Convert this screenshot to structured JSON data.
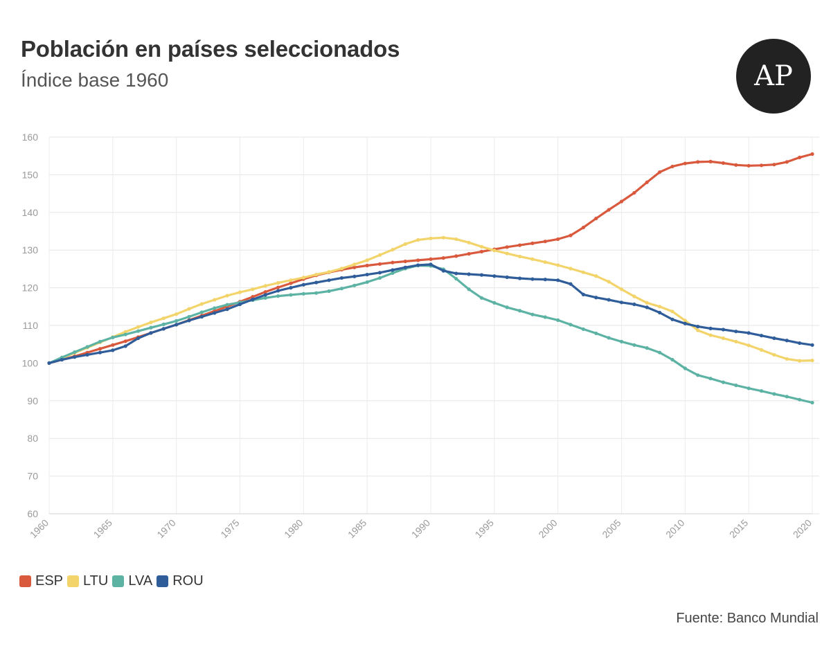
{
  "header": {
    "title": "Población en países seleccionados",
    "subtitle": "Índice base 1960",
    "logo_text": "AP"
  },
  "source": "Fuente: Banco Mundial",
  "chart_data": {
    "type": "line",
    "title": "Población en países seleccionados",
    "subtitle": "Índice base 1960",
    "xlabel": "",
    "ylabel": "",
    "x": [
      1960,
      1961,
      1962,
      1963,
      1964,
      1965,
      1966,
      1967,
      1968,
      1969,
      1970,
      1971,
      1972,
      1973,
      1974,
      1975,
      1976,
      1977,
      1978,
      1979,
      1980,
      1981,
      1982,
      1983,
      1984,
      1985,
      1986,
      1987,
      1988,
      1989,
      1990,
      1991,
      1992,
      1993,
      1994,
      1995,
      1996,
      1997,
      1998,
      1999,
      2000,
      2001,
      2002,
      2003,
      2004,
      2005,
      2006,
      2007,
      2008,
      2009,
      2010,
      2011,
      2012,
      2013,
      2014,
      2015,
      2016,
      2017,
      2018,
      2019,
      2020
    ],
    "xlim": [
      1960,
      2020
    ],
    "ylim": [
      60,
      160
    ],
    "xticks": [
      1960,
      1965,
      1970,
      1975,
      1980,
      1985,
      1990,
      1995,
      2000,
      2005,
      2010,
      2015,
      2020
    ],
    "yticks": [
      60,
      70,
      80,
      90,
      100,
      110,
      120,
      130,
      140,
      150,
      160
    ],
    "grid": true,
    "legend_position": "bottom-left",
    "series": [
      {
        "name": "ESP",
        "color": "#d9593d",
        "values": [
          100,
          100.9,
          101.8,
          102.8,
          103.8,
          104.8,
          105.8,
          106.9,
          108.0,
          109.1,
          110.2,
          111.4,
          112.6,
          113.8,
          115.0,
          116.3,
          117.6,
          118.9,
          120.1,
          121.2,
          122.3,
          123.3,
          124.1,
          124.8,
          125.4,
          125.9,
          126.3,
          126.7,
          127.0,
          127.3,
          127.6,
          127.9,
          128.4,
          129.0,
          129.6,
          130.2,
          130.8,
          131.3,
          131.8,
          132.3,
          132.9,
          133.9,
          136.0,
          138.4,
          140.7,
          142.9,
          145.2,
          148.0,
          150.7,
          152.2,
          153.0,
          153.4,
          153.5,
          153.1,
          152.6,
          152.4,
          152.5,
          152.7,
          153.4,
          154.6,
          155.5
        ]
      },
      {
        "name": "LTU",
        "color": "#f2d46b",
        "values": [
          100,
          101.3,
          102.7,
          104.1,
          105.5,
          106.9,
          108.3,
          109.6,
          110.8,
          111.9,
          113.0,
          114.4,
          115.7,
          116.8,
          117.9,
          118.8,
          119.6,
          120.5,
          121.3,
          122.0,
          122.7,
          123.5,
          124.2,
          125.1,
          126.2,
          127.3,
          128.7,
          130.1,
          131.6,
          132.7,
          133.1,
          133.3,
          132.9,
          132.0,
          130.9,
          129.9,
          129.1,
          128.3,
          127.6,
          126.8,
          126.0,
          125.1,
          124.1,
          123.1,
          121.6,
          119.6,
          117.7,
          116.0,
          115.0,
          113.7,
          111.3,
          108.7,
          107.4,
          106.6,
          105.7,
          104.7,
          103.5,
          102.2,
          101.1,
          100.6,
          100.7
        ]
      },
      {
        "name": "LVA",
        "color": "#5cb3a4",
        "values": [
          100,
          101.5,
          102.9,
          104.3,
          105.7,
          106.8,
          107.6,
          108.5,
          109.4,
          110.3,
          111.2,
          112.3,
          113.5,
          114.6,
          115.5,
          116.1,
          116.7,
          117.3,
          117.8,
          118.1,
          118.4,
          118.6,
          119.1,
          119.8,
          120.6,
          121.5,
          122.6,
          123.9,
          125.1,
          125.9,
          125.8,
          124.9,
          122.4,
          119.6,
          117.3,
          116.0,
          114.8,
          113.9,
          112.9,
          112.2,
          111.4,
          110.2,
          109.0,
          107.9,
          106.7,
          105.7,
          104.8,
          104.0,
          102.8,
          100.9,
          98.6,
          96.8,
          95.9,
          94.9,
          94.1,
          93.3,
          92.6,
          91.8,
          91.1,
          90.3,
          89.5
        ]
      },
      {
        "name": "ROU",
        "color": "#2f5d9a",
        "values": [
          100,
          100.9,
          101.6,
          102.2,
          102.8,
          103.4,
          104.5,
          106.6,
          108.0,
          109.1,
          110.2,
          111.3,
          112.3,
          113.3,
          114.3,
          115.6,
          116.9,
          118.1,
          119.2,
          120.0,
          120.8,
          121.4,
          122.0,
          122.6,
          123.0,
          123.5,
          124.0,
          124.7,
          125.4,
          126.0,
          126.2,
          124.5,
          123.8,
          123.6,
          123.4,
          123.1,
          122.8,
          122.5,
          122.3,
          122.2,
          122.0,
          121.0,
          118.2,
          117.4,
          116.8,
          116.1,
          115.6,
          114.8,
          113.4,
          111.6,
          110.5,
          109.7,
          109.2,
          108.9,
          108.4,
          108.0,
          107.3,
          106.6,
          106.0,
          105.3,
          104.8
        ]
      }
    ]
  }
}
